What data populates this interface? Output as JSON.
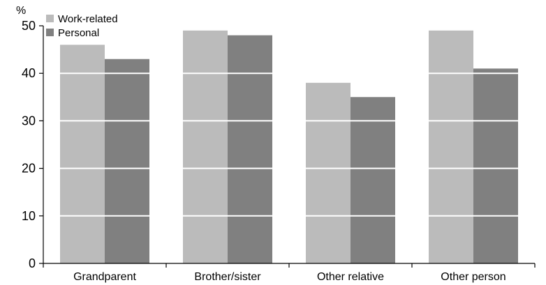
{
  "chart_data": {
    "type": "bar",
    "categories": [
      "Grandparent",
      "Brother/sister",
      "Other relative",
      "Other person"
    ],
    "series": [
      {
        "name": "Work-related",
        "values": [
          46,
          49,
          38,
          49
        ],
        "color": "#bbbbbb"
      },
      {
        "name": "Personal",
        "values": [
          43,
          48,
          35,
          41
        ],
        "color": "#808080"
      }
    ],
    "ylim": [
      0,
      50
    ],
    "yticks": [
      0,
      10,
      20,
      30,
      40,
      50
    ],
    "ylabel": "%",
    "xlabel": "",
    "grid": true,
    "grid_color": "#ffffff",
    "legend_placement": "top-left"
  }
}
